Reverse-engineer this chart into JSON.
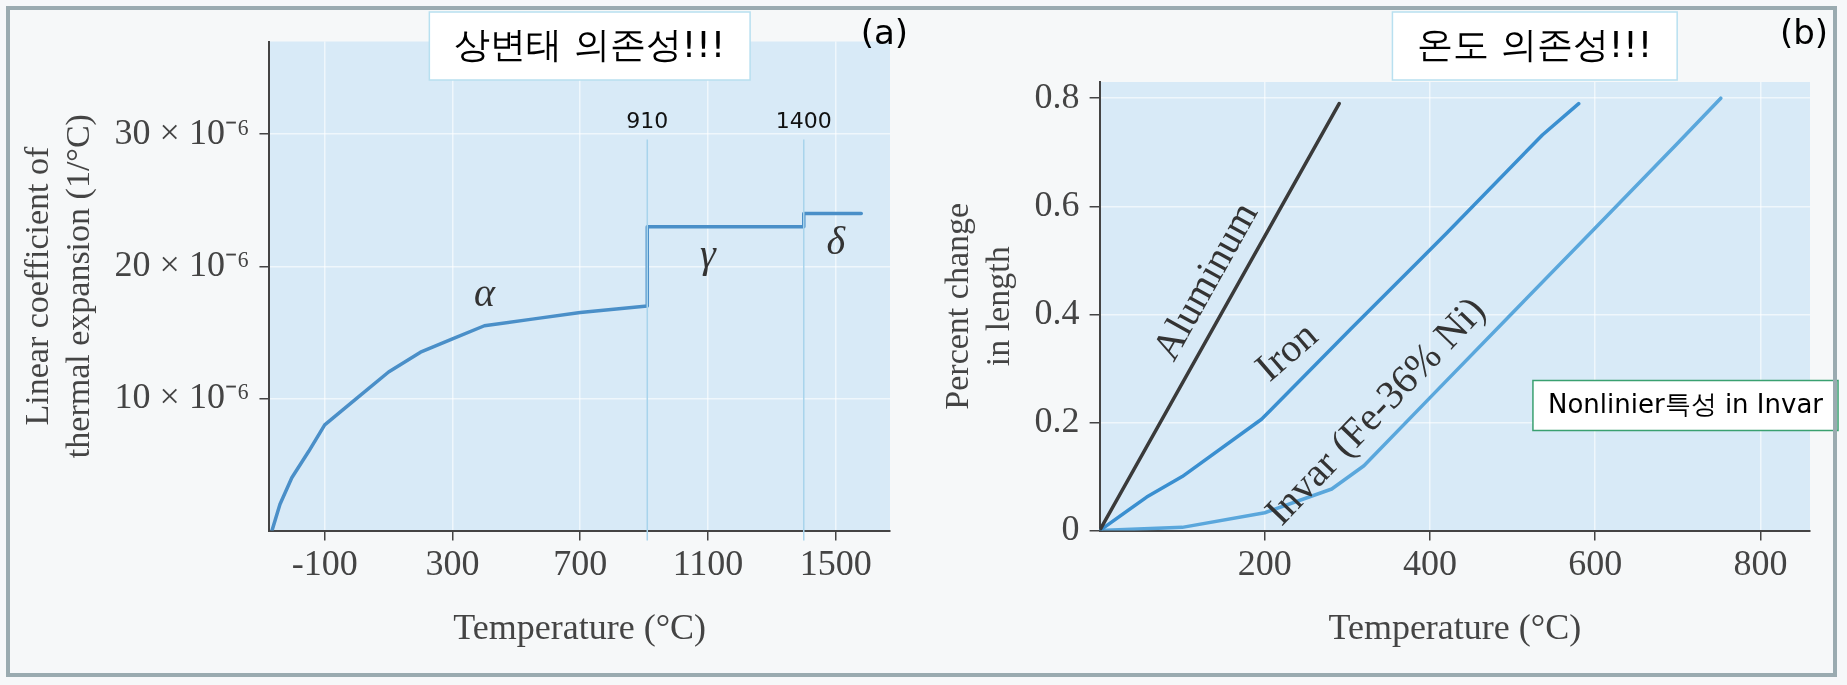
{
  "chart_data": [
    {
      "type": "line",
      "title": "상변태 의존성!!!",
      "xlabel": "Temperature (°C)",
      "ylabel": "Linear coefficient of thermal expansion (1/°C)",
      "xlim": [
        -273,
        1670
      ],
      "xticks": [
        -100,
        300,
        700,
        1100,
        1500
      ],
      "ylim": [
        0,
        3.7e-05
      ],
      "yticks": [
        {
          "value": 1e-05,
          "label": "10 × 10⁻⁶"
        },
        {
          "value": 2e-05,
          "label": "20 × 10⁻⁶"
        },
        {
          "value": 3e-05,
          "label": "30 × 10⁻⁶"
        }
      ],
      "series": [
        {
          "color": "#4a8fc8",
          "x": [
            -265,
            -240,
            -203,
            -150,
            -100,
            0,
            100,
            200,
            300,
            400,
            550,
            700,
            910,
            910,
            1400,
            1400,
            1580
          ],
          "values": [
            0,
            2e-06,
            4e-06,
            6e-06,
            8e-06,
            1e-05,
            1.2e-05,
            1.35e-05,
            1.45e-05,
            1.55e-05,
            1.6e-05,
            1.65e-05,
            1.7e-05,
            2.3e-05,
            2.3e-05,
            2.4e-05,
            2.4e-05
          ]
        }
      ],
      "ref_lines": [
        {
          "axis": "x",
          "value": 910,
          "label": "910",
          "color": "#a8d4ec"
        },
        {
          "axis": "x",
          "value": 1400,
          "label": "1400",
          "color": "#a8d4ec"
        }
      ],
      "annotations": [
        "(a)",
        {
          "text": "α",
          "x": 400,
          "y": 1.55e-05
        },
        {
          "text": "γ",
          "x": 1100,
          "y": 2.3e-05
        },
        {
          "text": "δ",
          "x": 1500,
          "y": 2.4e-05
        }
      ],
      "grid": true,
      "legend": false,
      "marker": "none",
      "line_style": "solid"
    },
    {
      "type": "line",
      "title": "온도 의존성!!!",
      "xlabel": "Temperature (°C)",
      "ylabel": "Percent change in length",
      "xlim": [
        0,
        860
      ],
      "xticks": [
        200,
        400,
        600,
        800
      ],
      "ylim": [
        0,
        0.83
      ],
      "yticks": [
        0,
        0.2,
        0.4,
        0.6,
        0.8
      ],
      "series": [
        {
          "name": "Aluminum",
          "color": "#3a3a3a",
          "x": [
            0,
            290
          ],
          "values": [
            0,
            0.79
          ]
        },
        {
          "name": "Iron",
          "color": "#3a8fd0",
          "x": [
            0,
            57,
            100,
            196,
            304,
            420,
            536,
            580
          ],
          "values": [
            0,
            0.062,
            0.1,
            0.206,
            0.373,
            0.55,
            0.732,
            0.79
          ]
        },
        {
          "name": "Invar (Fe-36% Ni)",
          "color": "#5aa7dc",
          "x": [
            0,
            100,
            200,
            281,
            320,
            400,
            500,
            600,
            700,
            752
          ],
          "values": [
            0,
            0.006,
            0.033,
            0.077,
            0.12,
            0.246,
            0.403,
            0.56,
            0.717,
            0.8
          ]
        }
      ],
      "annotations": [
        "(b)",
        "Nonlinier특성 in Invar"
      ],
      "grid": true,
      "legend": false,
      "marker": "none",
      "line_style": "solid"
    }
  ]
}
